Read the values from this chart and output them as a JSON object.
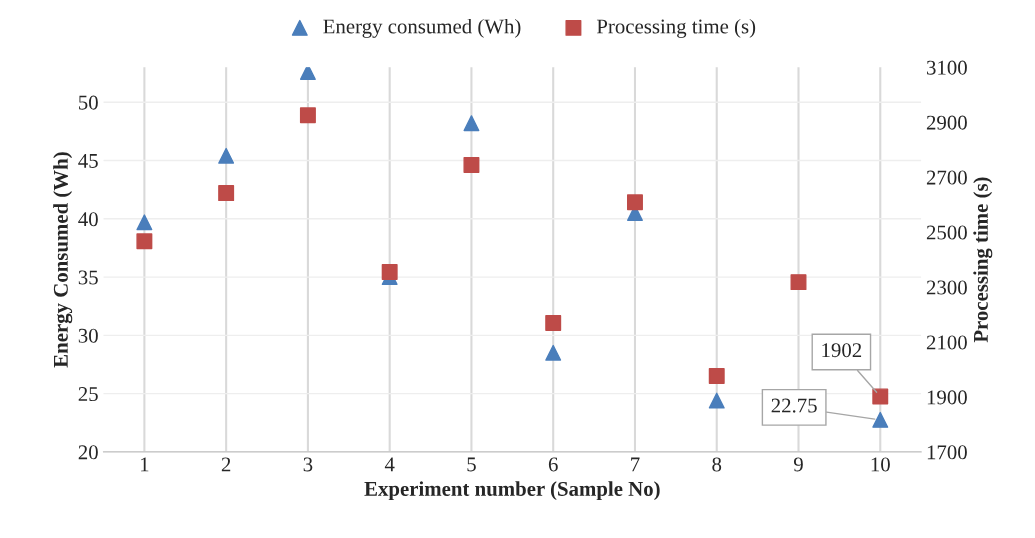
{
  "chart_data": {
    "type": "scatter",
    "xlabel": "Experiment number (Sample No)",
    "ylabel": "Energy Consumed (Wh)",
    "y2label": "Processing time (s)",
    "categories": [
      "1",
      "2",
      "3",
      "4",
      "5",
      "6",
      "7",
      "8",
      "9",
      "10"
    ],
    "series": [
      {
        "name": "Energy consumed (Wh)",
        "color": "#4a7ebb",
        "marker": "triangle",
        "values": [
          39.7,
          45.4,
          52.6,
          35.0,
          48.2,
          28.5,
          40.5,
          24.4,
          null,
          22.75
        ],
        "value_labels": [
          null,
          null,
          null,
          null,
          null,
          null,
          null,
          null,
          null,
          "22.75"
        ]
      },
      {
        "name": "Processing time (s)",
        "color": "#be4b48",
        "marker": "square",
        "axis": "y2",
        "values": [
          2467,
          2642,
          2925,
          2355,
          2744,
          2169,
          2609,
          1976,
          2318,
          1902
        ],
        "value_labels": [
          null,
          null,
          null,
          null,
          null,
          null,
          null,
          null,
          null,
          "1902"
        ]
      }
    ],
    "ylim": [
      20,
      53
    ],
    "yticks": [
      20,
      25,
      30,
      35,
      40,
      45,
      50
    ],
    "y2lim": [
      1700,
      3100
    ],
    "y2ticks": [
      1700,
      1900,
      2100,
      2300,
      2500,
      2700,
      2900,
      3100
    ],
    "grid": true,
    "legend": "top"
  }
}
